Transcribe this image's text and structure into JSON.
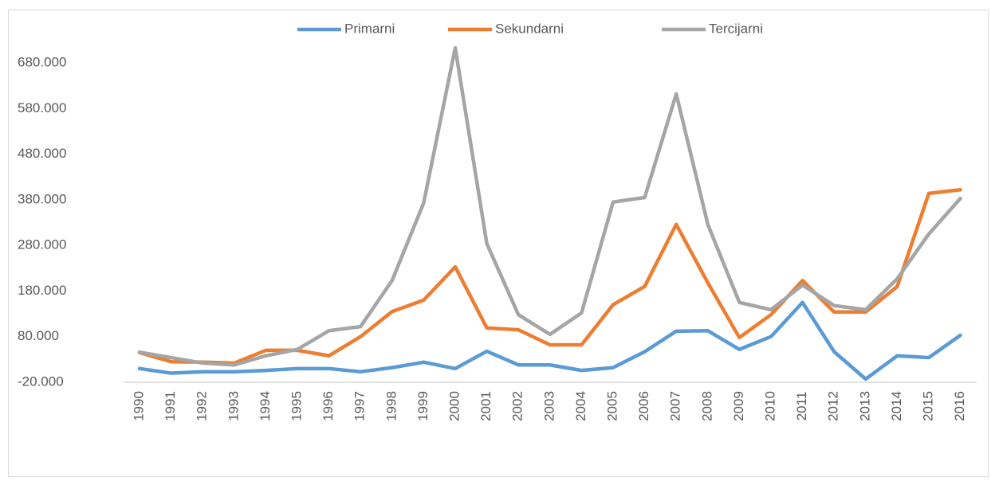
{
  "chart_data": {
    "type": "line",
    "categories": [
      "1990",
      "1991",
      "1992",
      "1993",
      "1994",
      "1995",
      "1996",
      "1997",
      "1998",
      "1999",
      "2000",
      "2001",
      "2002",
      "2003",
      "2004",
      "2005",
      "2006",
      "2007",
      "2008",
      "2009",
      "2010",
      "2011",
      "2012",
      "2013",
      "2014",
      "2015",
      "2016"
    ],
    "series": [
      {
        "name": "Primarni",
        "color": "#5b9bd5",
        "values": [
          10000,
          0,
          3000,
          3000,
          6000,
          10000,
          10000,
          3000,
          12000,
          24000,
          10000,
          48000,
          18000,
          18000,
          6000,
          12000,
          47000,
          92000,
          93000,
          52000,
          80000,
          155000,
          47000,
          -13000,
          38000,
          34000,
          83000
        ]
      },
      {
        "name": "Sekundarni",
        "color": "#ed7d31",
        "values": [
          45000,
          25000,
          24000,
          22000,
          50000,
          50000,
          38000,
          80000,
          135000,
          160000,
          233000,
          99000,
          95000,
          62000,
          62000,
          150000,
          190000,
          326000,
          198000,
          78000,
          128000,
          203000,
          134000,
          134000,
          190000,
          394000,
          402000
        ]
      },
      {
        "name": "Tercijarni",
        "color": "#a5a5a5",
        "values": [
          46000,
          34000,
          22000,
          18000,
          38000,
          52000,
          93000,
          102000,
          203000,
          373000,
          713000,
          284000,
          128000,
          85000,
          132000,
          375000,
          385000,
          612000,
          326000,
          155000,
          139000,
          193000,
          148000,
          139000,
          207000,
          305000,
          383000
        ]
      }
    ],
    "ylim": [
      -20000,
      720000
    ],
    "yticks": [
      {
        "value": -20000,
        "label": "-20.000"
      },
      {
        "value": 80000,
        "label": "80.000"
      },
      {
        "value": 180000,
        "label": "180.000"
      },
      {
        "value": 280000,
        "label": "280.000"
      },
      {
        "value": 380000,
        "label": "380.000"
      },
      {
        "value": 480000,
        "label": "480.000"
      },
      {
        "value": 580000,
        "label": "580.000"
      },
      {
        "value": 680000,
        "label": "680.000"
      }
    ],
    "grid": false,
    "legend": "top"
  }
}
